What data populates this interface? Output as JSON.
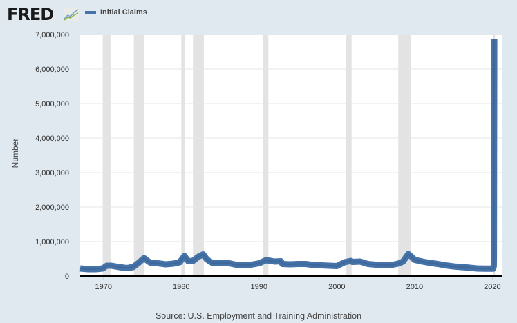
{
  "logo": {
    "text": "FRED",
    "icon": "chart-line-icon"
  },
  "chart_data": {
    "type": "line",
    "title": "",
    "legend": [
      {
        "name": "Initial Claims",
        "color": "#4572a7"
      }
    ],
    "legend_placement": "top-left",
    "xlabel": "",
    "ylabel": "Number",
    "source": "Source: U.S. Employment and Training Administration",
    "xlim": [
      1967.0,
      2021.3
    ],
    "ylim": [
      0,
      7000000
    ],
    "x_ticks": [
      1970,
      1980,
      1990,
      2000,
      2010,
      2020
    ],
    "x_tick_labels": [
      "1970",
      "1980",
      "1990",
      "2000",
      "2010",
      "2020"
    ],
    "y_ticks": [
      0,
      1000000,
      2000000,
      3000000,
      4000000,
      5000000,
      6000000,
      7000000
    ],
    "y_tick_labels": [
      "0",
      "1,000,000",
      "2,000,000",
      "3,000,000",
      "4,000,000",
      "5,000,000",
      "6,000,000",
      "7,000,000"
    ],
    "grid": true,
    "recessions": [
      [
        1969.9,
        1970.9
      ],
      [
        1973.9,
        1975.2
      ],
      [
        1980.0,
        1980.5
      ],
      [
        1981.5,
        1982.9
      ],
      [
        1990.5,
        1991.2
      ],
      [
        2001.2,
        2001.9
      ],
      [
        2007.9,
        2009.5
      ],
      [
        2020.1,
        2020.35
      ]
    ],
    "series": [
      {
        "name": "Initial Claims",
        "x": [
          1967,
          1968,
          1969,
          1969.9,
          1970.4,
          1971,
          1972,
          1973,
          1973.8,
          1974.5,
          1975.2,
          1975.8,
          1976,
          1977,
          1978,
          1979,
          1979.8,
          1980.4,
          1980.9,
          1981.5,
          1982.2,
          1982.8,
          1983.3,
          1984,
          1985,
          1986,
          1987,
          1988,
          1989,
          1990,
          1990.9,
          1991.5,
          1992,
          1992.8,
          1993,
          1994,
          1995,
          1996,
          1997,
          1998,
          1999,
          2000,
          2001,
          2001.8,
          2002,
          2003,
          2004,
          2005,
          2006,
          2007,
          2007.9,
          2008.5,
          2009.2,
          2009.8,
          2010,
          2011,
          2012,
          2013,
          2014,
          2015,
          2016,
          2017,
          2018,
          2019,
          2020.1,
          2020.18,
          2020.2,
          2020.22,
          2020.24
        ],
        "values": [
          220000,
          200000,
          200000,
          220000,
          300000,
          300000,
          260000,
          230000,
          260000,
          380000,
          520000,
          420000,
          390000,
          370000,
          340000,
          360000,
          400000,
          580000,
          430000,
          440000,
          560000,
          630000,
          480000,
          380000,
          390000,
          380000,
          330000,
          310000,
          330000,
          370000,
          460000,
          440000,
          420000,
          430000,
          350000,
          340000,
          350000,
          350000,
          320000,
          310000,
          300000,
          290000,
          400000,
          440000,
          410000,
          420000,
          350000,
          330000,
          310000,
          320000,
          360000,
          420000,
          640000,
          520000,
          470000,
          420000,
          380000,
          350000,
          310000,
          280000,
          260000,
          245000,
          220000,
          215000,
          215000,
          280000,
          500000,
          3307000,
          6867000
        ]
      }
    ]
  }
}
